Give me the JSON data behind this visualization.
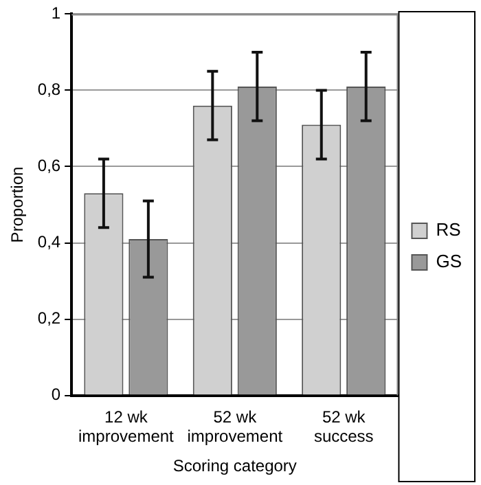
{
  "chart_data": {
    "type": "bar",
    "xlabel": "Scoring category",
    "ylabel": "Proportion",
    "categories": [
      "12 wk improvement",
      "52 wk improvement",
      "52 wk success"
    ],
    "series": [
      {
        "name": "RS",
        "color": "#d0d0d0",
        "values": [
          0.53,
          0.76,
          0.71
        ],
        "errors": [
          [
            0.44,
            0.62
          ],
          [
            0.67,
            0.85
          ],
          [
            0.62,
            0.8
          ]
        ]
      },
      {
        "name": "GS",
        "color": "#999999",
        "values": [
          0.41,
          0.81,
          0.81
        ],
        "errors": [
          [
            0.31,
            0.51
          ],
          [
            0.72,
            0.9
          ],
          [
            0.72,
            0.9
          ]
        ]
      }
    ],
    "ylim": [
      0,
      1
    ],
    "yticks": [
      0,
      {
        "value": 0.2,
        "label": "0,2"
      },
      {
        "value": 0.4,
        "label": "0,4"
      },
      {
        "value": 0.6,
        "label": "0,6"
      },
      {
        "value": 0.8,
        "label": "0,8"
      },
      1
    ],
    "grid": "y",
    "legend": "right"
  }
}
